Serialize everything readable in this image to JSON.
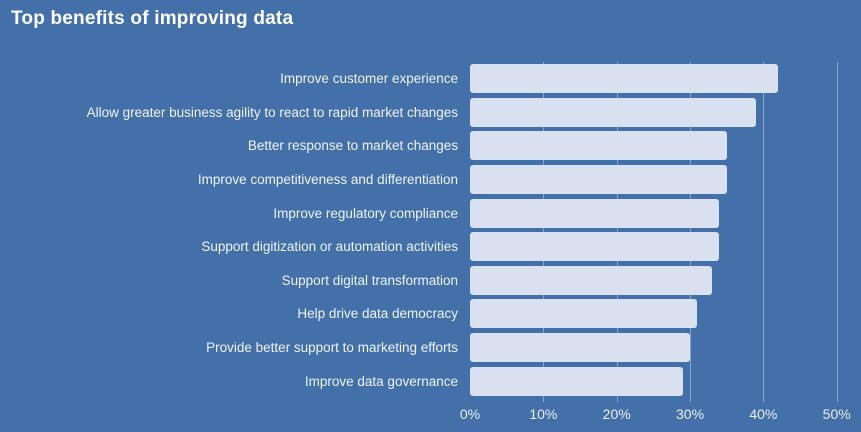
{
  "title": "Top benefits of improving data",
  "colors": {
    "background": "#4470aa",
    "bar_fill": "#d9e1f1",
    "gridline": "rgba(255,255,255,0.38)",
    "title_text": "#ffffff",
    "label_text": "#eef2f8"
  },
  "chart_data": {
    "type": "bar",
    "orientation": "horizontal",
    "title": "Top benefits of improving data",
    "categories": [
      "Improve customer experience",
      "Allow greater business agility to react to rapid market changes",
      "Better response to market changes",
      "Improve competitiveness and differentiation",
      "Improve regulatory compliance",
      "Support digitization or automation activities",
      "Support digital transformation",
      "Help drive data democracy",
      "Provide better support to marketing efforts",
      "Improve data governance"
    ],
    "values": [
      42,
      39,
      35,
      35,
      34,
      34,
      33,
      31,
      30,
      29
    ],
    "unit": "%",
    "x_ticks": [
      "0%",
      "10%",
      "20%",
      "30%",
      "40%",
      "50%"
    ],
    "xlim": [
      0,
      50
    ],
    "grid": true,
    "legend": false,
    "value_labels_shown": false
  }
}
